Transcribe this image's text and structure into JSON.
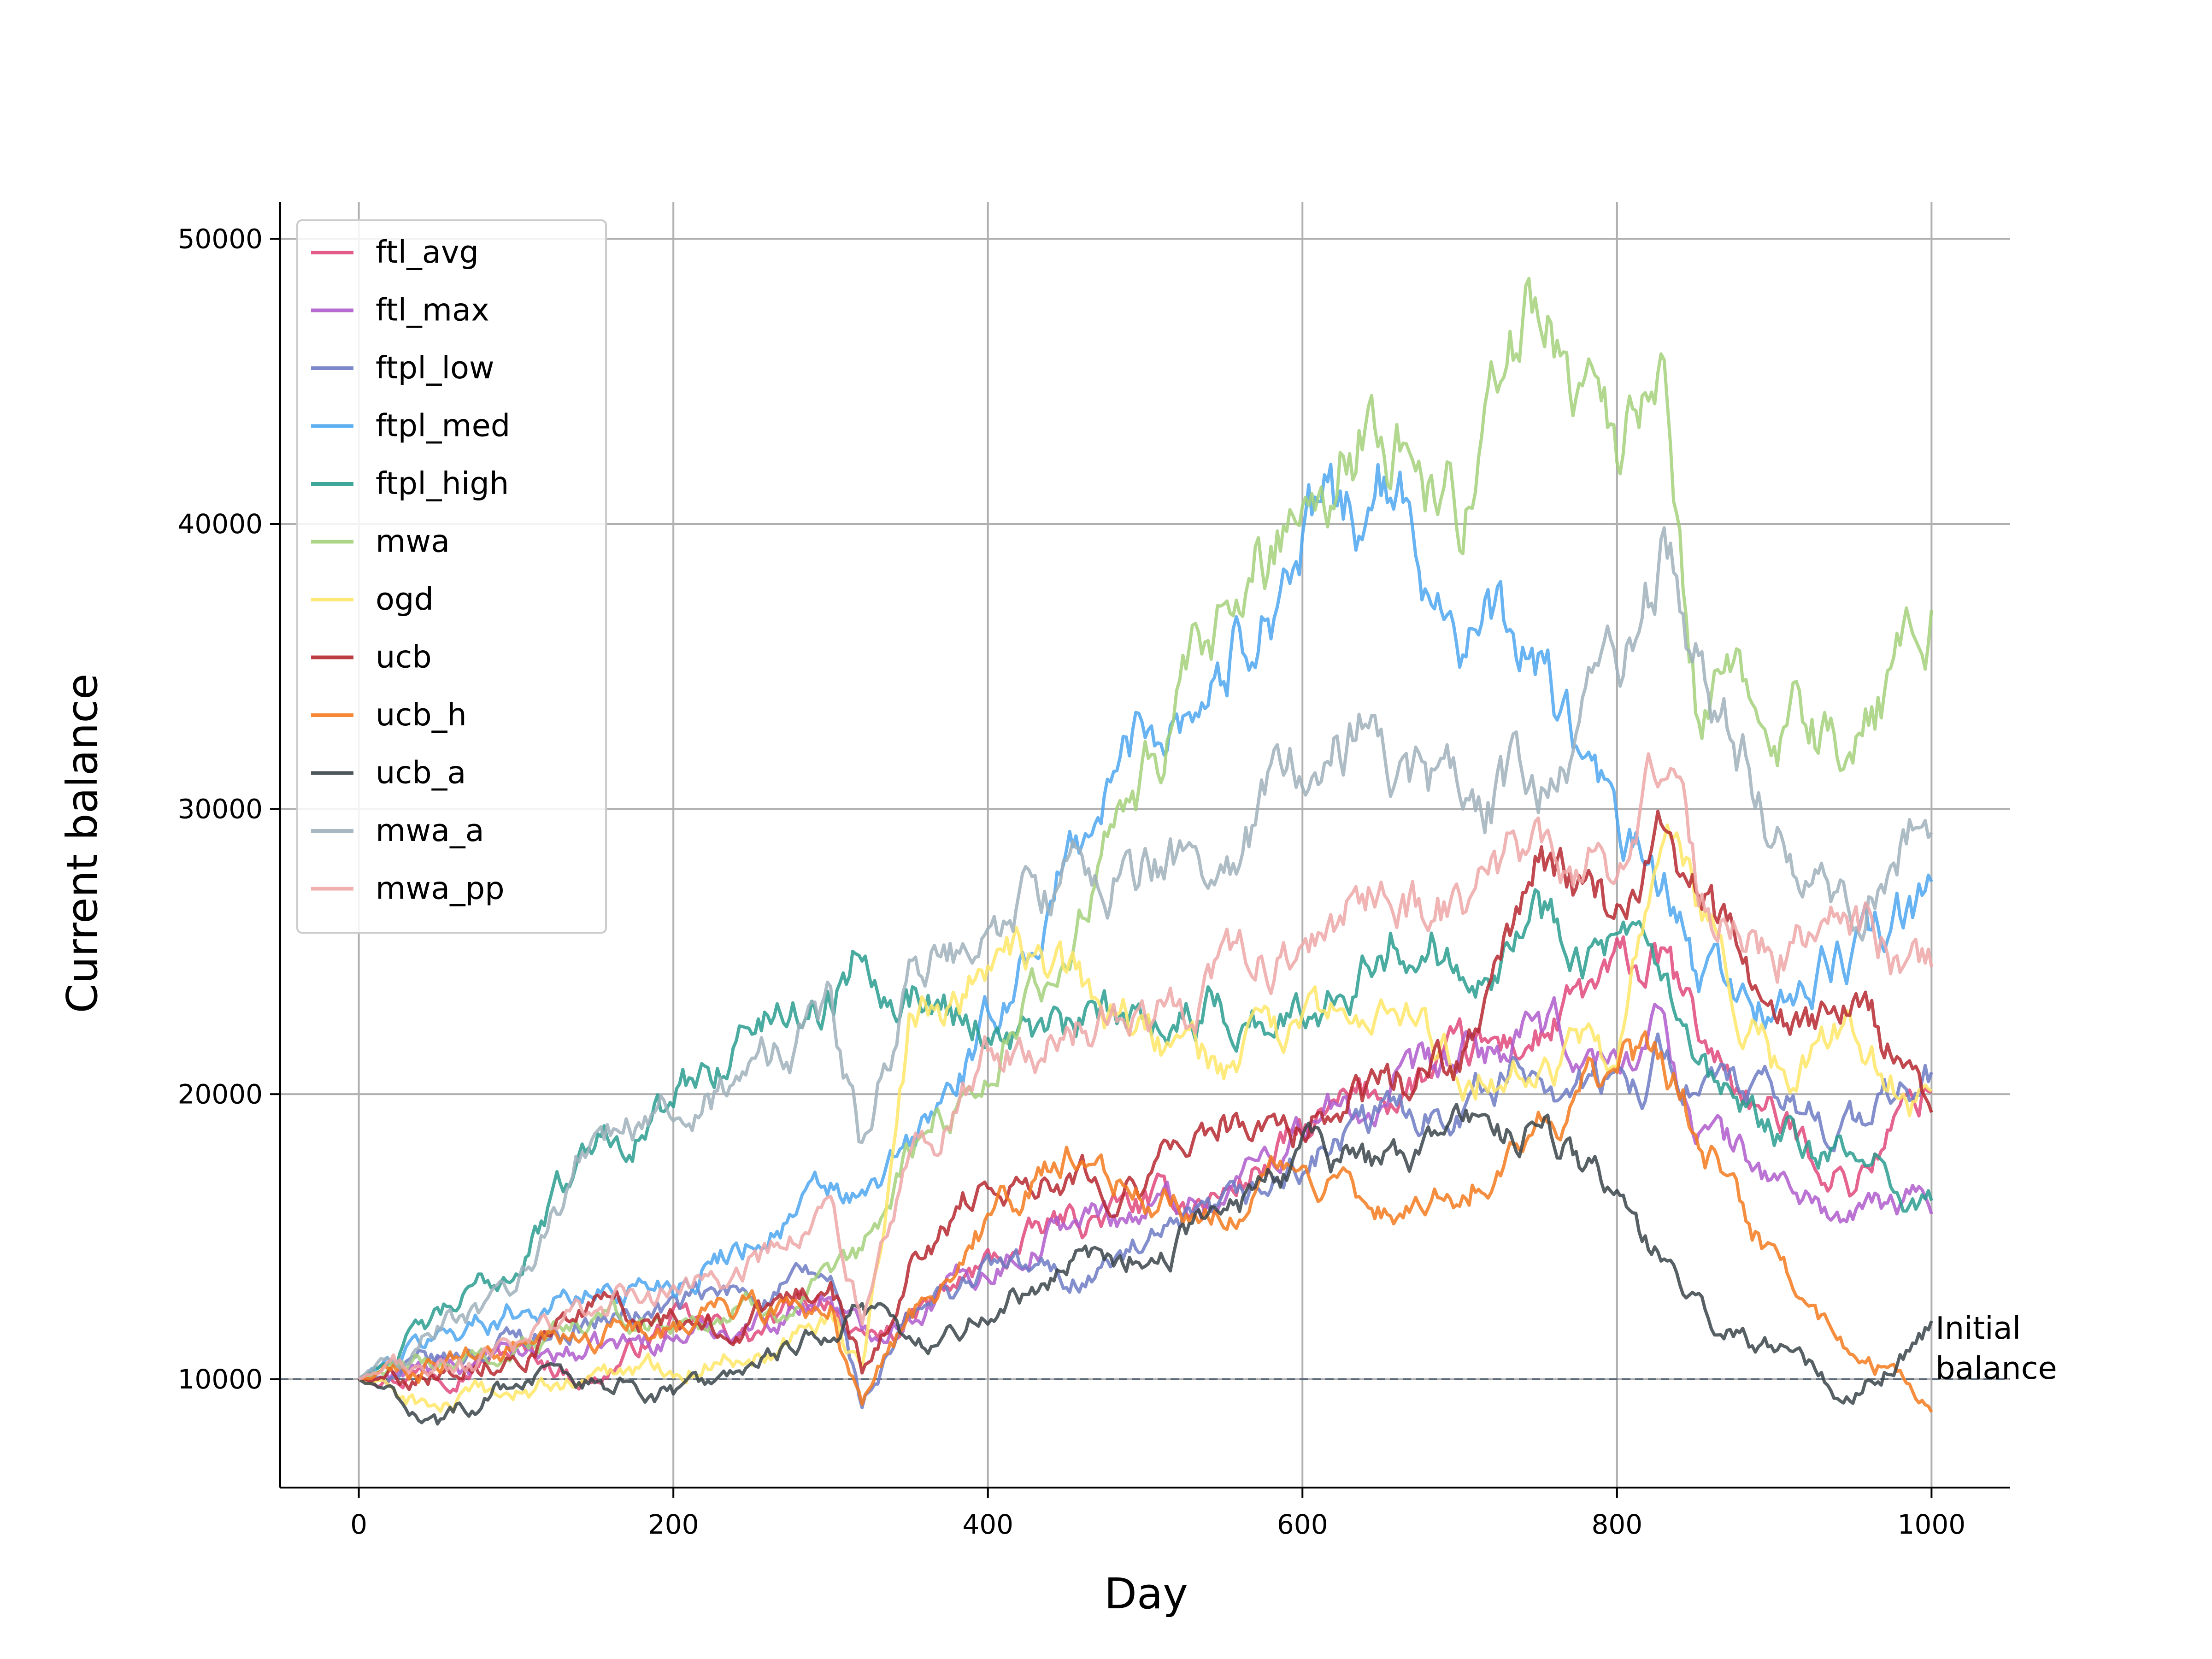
{
  "chart_data": {
    "type": "line",
    "title": "",
    "xlabel": "Day",
    "ylabel": "Current balance",
    "xlim": [
      -50,
      1050
    ],
    "ylim": [
      6200,
      51300
    ],
    "xticks": [
      0,
      200,
      400,
      600,
      800,
      1000
    ],
    "xtick_labels": [
      "0",
      "200",
      "400",
      "600",
      "800",
      "1000"
    ],
    "yticks": [
      10000,
      20000,
      30000,
      40000,
      50000
    ],
    "ytick_labels": [
      "10000",
      "20000",
      "30000",
      "40000",
      "50000"
    ],
    "grid": true,
    "legend_position": "upper-left",
    "x": [
      0,
      50,
      100,
      150,
      200,
      250,
      300,
      320,
      350,
      400,
      450,
      500,
      550,
      600,
      650,
      700,
      750,
      800,
      830,
      850,
      900,
      950,
      1000
    ],
    "reference_line": {
      "y": 10000,
      "style": "dashed",
      "label": "Initial\nbalance"
    },
    "annotation_lines": [
      "Initial",
      "balance"
    ],
    "series": [
      {
        "name": "ftl_avg",
        "color": "#e0497b",
        "values": [
          10000,
          10500,
          11000,
          10000,
          12000,
          11500,
          13000,
          11000,
          12000,
          14000,
          15500,
          16000,
          16500,
          18500,
          20000,
          21000,
          22000,
          24000,
          24500,
          22000,
          19000,
          17000,
          20500
        ]
      },
      {
        "name": "ftl_max",
        "color": "#b05ccc",
        "values": [
          10000,
          10300,
          10800,
          11000,
          11500,
          12000,
          13000,
          11500,
          12500,
          14000,
          15500,
          16000,
          16500,
          19000,
          19500,
          21000,
          22000,
          21000,
          22500,
          19000,
          17000,
          15500,
          16500
        ]
      },
      {
        "name": "ftpl_low",
        "color": "#6d7bc4",
        "values": [
          10000,
          10500,
          11500,
          12000,
          12500,
          13000,
          13500,
          9000,
          12000,
          14000,
          13500,
          14500,
          15500,
          17500,
          19000,
          20000,
          21000,
          20000,
          21500,
          20500,
          19500,
          19000,
          20500
        ]
      },
      {
        "name": "ftpl_med",
        "color": "#4da6f0",
        "values": [
          10000,
          11500,
          12500,
          13000,
          13500,
          15000,
          16500,
          16000,
          18000,
          22000,
          28000,
          33000,
          35000,
          39500,
          41000,
          37000,
          35000,
          29000,
          27000,
          24000,
          23000,
          25000,
          26500
        ]
      },
      {
        "name": "ftpl_high",
        "color": "#2a9d8f",
        "values": [
          10000,
          12000,
          14000,
          18500,
          19500,
          22500,
          23500,
          25500,
          24000,
          22500,
          22000,
          23000,
          23000,
          22500,
          26000,
          25000,
          26500,
          25000,
          23500,
          20000,
          18500,
          17500,
          16500
        ]
      },
      {
        "name": "mwa",
        "color": "#a3d17a",
        "values": [
          10000,
          10500,
          11000,
          12000,
          12000,
          12500,
          13000,
          14000,
          18000,
          21000,
          25000,
          31000,
          36000,
          41500,
          44000,
          40500,
          48500,
          43000,
          43500,
          34000,
          33500,
          32000,
          37000
        ]
      },
      {
        "name": "ogd",
        "color": "#ffe667",
        "values": [
          10000,
          9000,
          9500,
          10000,
          10500,
          11000,
          12500,
          10000,
          22000,
          25000,
          24000,
          22000,
          21000,
          22000,
          23000,
          21000,
          21500,
          21000,
          29000,
          26000,
          21000,
          22000,
          19500
        ]
      },
      {
        "name": "ucb",
        "color": "#b5282f",
        "values": [
          10000,
          10500,
          11000,
          12500,
          12000,
          12000,
          13500,
          10500,
          14000,
          17000,
          17500,
          17000,
          19000,
          19000,
          20000,
          21000,
          28000,
          26000,
          30000,
          27000,
          22000,
          23000,
          19500
        ]
      },
      {
        "name": "ucb_h",
        "color": "#f47a1f",
        "values": [
          10000,
          10500,
          11000,
          11500,
          12000,
          12500,
          12500,
          9000,
          12000,
          15500,
          17500,
          16500,
          16000,
          17500,
          16000,
          17000,
          19000,
          21000,
          21000,
          19000,
          14000,
          11000,
          9500
        ]
      },
      {
        "name": "ucb_a",
        "color": "#3a4449",
        "values": [
          10000,
          8500,
          10000,
          10000,
          9500,
          10000,
          12000,
          12500,
          11000,
          12500,
          14000,
          14500,
          15500,
          18000,
          17500,
          18500,
          19000,
          16500,
          14000,
          12500,
          11000,
          9500,
          12000
        ]
      },
      {
        "name": "mwa_a",
        "color": "#9fb0bb",
        "values": [
          10000,
          12000,
          12500,
          19000,
          19000,
          20500,
          23000,
          18000,
          24000,
          25500,
          28000,
          28000,
          28500,
          31500,
          33000,
          30000,
          31000,
          34500,
          39000,
          36000,
          29000,
          27000,
          29500
        ]
      },
      {
        "name": "mwa_pp",
        "color": "#eea7a7",
        "values": [
          10000,
          10500,
          11000,
          12500,
          13000,
          14000,
          15500,
          12000,
          17000,
          21000,
          22500,
          22500,
          24000,
          25500,
          27000,
          26500,
          28500,
          28000,
          31000,
          27000,
          25000,
          26000,
          24000
        ]
      }
    ]
  }
}
